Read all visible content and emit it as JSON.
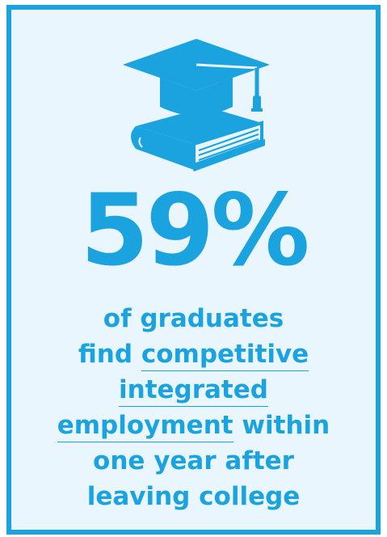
{
  "stat": {
    "value": "59%",
    "lines": [
      {
        "text": "of graduates"
      },
      {
        "pre": "find ",
        "link": "competitive"
      },
      {
        "link": "integrated"
      },
      {
        "link": "employment",
        "post": " within"
      },
      {
        "text": "one year after"
      },
      {
        "text": "leaving college"
      }
    ]
  },
  "colors": {
    "accent": "#1aa3df",
    "background": "#eaf6fd"
  },
  "icons": [
    "graduation-cap-on-book-icon"
  ]
}
